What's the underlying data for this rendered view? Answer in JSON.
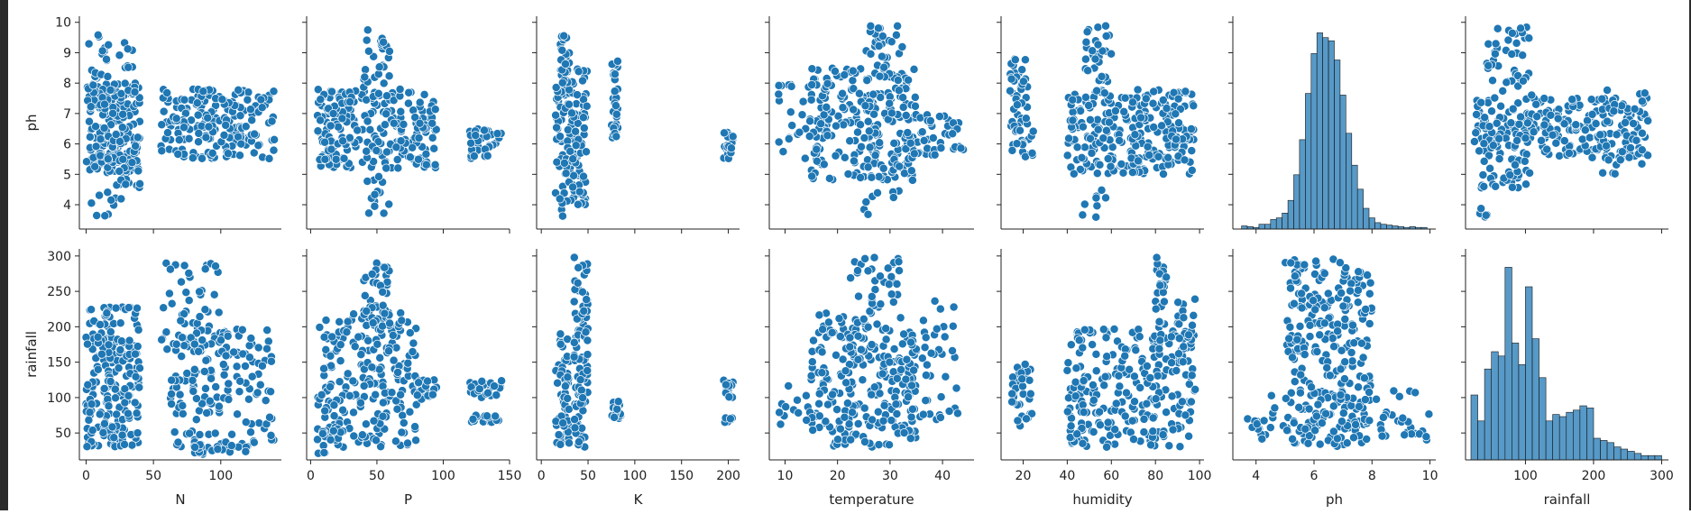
{
  "chart_data": {
    "type": "scatter",
    "kind": "pairplot",
    "color": "#1f77b4",
    "edge_color": "#ffffff",
    "row_variables": [
      "ph",
      "rainfall"
    ],
    "column_variables": [
      "N",
      "P",
      "K",
      "temperature",
      "humidity",
      "ph",
      "rainfall"
    ],
    "axes": {
      "N": {
        "range": [
          -5,
          145
        ],
        "ticks": [
          0,
          50,
          100
        ],
        "tick_labels": [
          "0",
          "50",
          "100"
        ]
      },
      "P": {
        "range": [
          -3,
          150
        ],
        "ticks": [
          0,
          50,
          100,
          150
        ],
        "tick_labels": [
          "0",
          "50",
          "100",
          "150"
        ]
      },
      "K": {
        "range": [
          -5,
          212
        ],
        "ticks": [
          0,
          50,
          100,
          150,
          200
        ],
        "tick_labels": [
          "0",
          "50",
          "100",
          "150",
          "200"
        ]
      },
      "temperature": {
        "range": [
          7,
          46
        ],
        "ticks": [
          10,
          20,
          30,
          40
        ],
        "tick_labels": [
          "10",
          "20",
          "30",
          "40"
        ]
      },
      "humidity": {
        "range": [
          10,
          102
        ],
        "ticks": [
          20,
          40,
          60,
          80,
          100
        ],
        "tick_labels": [
          "20",
          "40",
          "60",
          "80",
          "100"
        ]
      },
      "ph": {
        "range": [
          3.2,
          10.2
        ],
        "ticks": [
          4,
          6,
          8,
          10
        ],
        "tick_labels": [
          "4",
          "6",
          "8",
          "10"
        ],
        "row_ticks": [
          4,
          5,
          6,
          7,
          8,
          9,
          10
        ],
        "row_tick_labels": [
          "4",
          "5",
          "6",
          "7",
          "8",
          "9",
          "10"
        ]
      },
      "rainfall": {
        "range": [
          12,
          310
        ],
        "ticks": [
          100,
          200,
          300
        ],
        "tick_labels": [
          "100",
          "200",
          "300"
        ],
        "row_ticks": [
          50,
          100,
          150,
          200,
          250,
          300
        ],
        "row_tick_labels": [
          "50",
          "100",
          "150",
          "200",
          "250",
          "300"
        ]
      }
    },
    "scatter": {
      "ph": {
        "N": {
          "blobs": [
            [
              0,
              40,
              5.0,
              8.0,
              220
            ],
            [
              55,
              140,
              5.5,
              7.8,
              200
            ],
            [
              2,
              35,
              8.0,
              9.6,
              25
            ],
            [
              4,
              35,
              3.6,
              4.6,
              10
            ],
            [
              20,
              40,
              4.5,
              5.5,
              20
            ]
          ]
        },
        "P": {
          "blobs": [
            [
              5,
              95,
              5.2,
              7.8,
              260
            ],
            [
              40,
              60,
              7.8,
              9.8,
              25
            ],
            [
              40,
              60,
              3.5,
              5.0,
              15
            ],
            [
              120,
              145,
              5.5,
              6.5,
              40
            ]
          ]
        },
        "K": {
          "blobs": [
            [
              15,
              50,
              4.0,
              8.5,
              140
            ],
            [
              20,
              30,
              8.0,
              9.9,
              20
            ],
            [
              75,
              82,
              6.2,
              8.8,
              40
            ],
            [
              195,
              205,
              5.5,
              6.5,
              20
            ],
            [
              15,
              25,
              3.5,
              4.5,
              6
            ]
          ]
        },
        "temperature": {
          "blobs": [
            [
              15,
              35,
              4.8,
              8.5,
              240
            ],
            [
              25,
              33,
              8.0,
              9.9,
              30
            ],
            [
              25,
              32,
              3.5,
              4.5,
              8
            ],
            [
              8,
              20,
              5.5,
              8.0,
              40
            ],
            [
              33,
              44,
              5.5,
              7.0,
              50
            ]
          ]
        },
        "humidity": {
          "blobs": [
            [
              14,
              22,
              6.5,
              8.8,
              40
            ],
            [
              15,
              25,
              5.5,
              6.5,
              20
            ],
            [
              40,
              98,
              5.0,
              7.8,
              260
            ],
            [
              48,
              60,
              8.0,
              9.9,
              30
            ],
            [
              44,
              58,
              3.5,
              4.5,
              8
            ]
          ]
        },
        "rainfall": {
          "blobs": [
            [
              25,
              280,
              5.5,
              7.5,
              250
            ],
            [
              40,
              110,
              7.5,
              9.9,
              45
            ],
            [
              35,
              110,
              4.5,
              5.5,
              30
            ],
            [
              30,
              45,
              3.5,
              4.0,
              6
            ],
            [
              200,
              280,
              5.0,
              7.8,
              40
            ]
          ]
        }
      },
      "rainfall": {
        "N": {
          "blobs": [
            [
              0,
              40,
              30,
              230,
              220
            ],
            [
              55,
              100,
              160,
              295,
              50
            ],
            [
              60,
              140,
              30,
              200,
              160
            ],
            [
              80,
              120,
              20,
              35,
              20
            ]
          ]
        },
        "P": {
          "blobs": [
            [
              5,
              80,
              30,
              220,
              220
            ],
            [
              40,
              60,
              200,
              298,
              40
            ],
            [
              5,
              25,
              20,
              60,
              20
            ],
            [
              120,
              145,
              100,
              125,
              25
            ],
            [
              120,
              145,
              65,
              75,
              20
            ],
            [
              80,
              95,
              95,
              125,
              20
            ]
          ]
        },
        "K": {
          "blobs": [
            [
              15,
              30,
              30,
              200,
              60
            ],
            [
              35,
              50,
              30,
              298,
              90
            ],
            [
              75,
              85,
              70,
              95,
              20
            ],
            [
              195,
              205,
              100,
              125,
              15
            ],
            [
              195,
              205,
              65,
              75,
              10
            ]
          ]
        },
        "temperature": {
          "blobs": [
            [
              15,
              35,
              30,
              220,
              240
            ],
            [
              22,
              32,
              220,
              298,
              35
            ],
            [
              8,
              18,
              60,
              120,
              20
            ],
            [
              33,
              43,
              60,
              240,
              50
            ]
          ]
        },
        "humidity": {
          "blobs": [
            [
              14,
              24,
              60,
              150,
              40
            ],
            [
              40,
              98,
              30,
              200,
              250
            ],
            [
              80,
              85,
              200,
              298,
              25
            ],
            [
              90,
              98,
              150,
              240,
              30
            ]
          ]
        },
        "ph": {
          "blobs": [
            [
              5,
              8,
              30,
              298,
              260
            ],
            [
              4,
              9.5,
              40,
              110,
              60
            ],
            [
              3.5,
              4.5,
              35,
              70,
              8
            ],
            [
              8,
              10,
              40,
              80,
              20
            ]
          ]
        }
      }
    },
    "histograms": {
      "ph": {
        "bins": [
          3.5,
          3.7,
          3.9,
          4.1,
          4.3,
          4.5,
          4.7,
          4.9,
          5.1,
          5.3,
          5.5,
          5.7,
          5.9,
          6.1,
          6.3,
          6.5,
          6.7,
          6.9,
          7.1,
          7.3,
          7.5,
          7.7,
          7.9,
          8.1,
          8.3,
          8.5,
          8.7,
          8.9,
          9.1,
          9.3,
          9.5,
          9.7,
          9.9
        ],
        "counts": [
          4,
          3,
          2,
          6,
          6,
          12,
          14,
          20,
          36,
          68,
          112,
          170,
          220,
          246,
          240,
          236,
          212,
          168,
          120,
          80,
          50,
          26,
          14,
          8,
          6,
          5,
          4,
          3,
          2,
          3,
          2,
          2
        ],
        "ymax": 260
      },
      "rainfall": {
        "bins": [
          20,
          30,
          40,
          50,
          60,
          70,
          80,
          90,
          100,
          110,
          120,
          130,
          140,
          150,
          160,
          170,
          180,
          190,
          200,
          210,
          220,
          230,
          240,
          250,
          260,
          270,
          280,
          290,
          300
        ],
        "counts": [
          30,
          18,
          42,
          50,
          48,
          89,
          54,
          44,
          80,
          56,
          38,
          18,
          21,
          20,
          22,
          23,
          25,
          24,
          10,
          9,
          8,
          6,
          5,
          4,
          3,
          2,
          2,
          2
        ],
        "ymax": 95
      }
    }
  }
}
